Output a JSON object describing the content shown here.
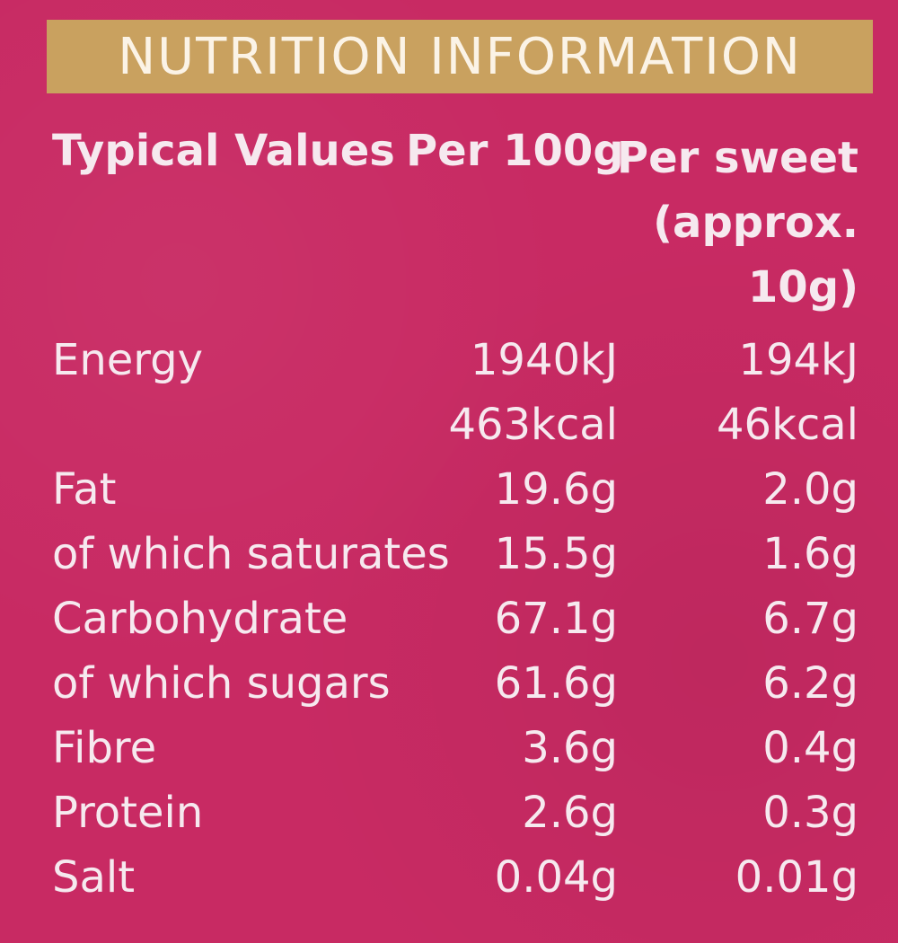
{
  "title": "NUTRITION INFORMATION",
  "header": {
    "typical_values": "Typical Values",
    "per_100g": "Per 100g",
    "per_sweet_line1": "Per sweet",
    "per_sweet_line2": "(approx.",
    "per_sweet_line3": "10g)"
  },
  "rows": [
    {
      "label": "Energy",
      "per100": [
        "1940kJ",
        "463kcal"
      ],
      "persweet": [
        "194kJ",
        "46kcal"
      ]
    },
    {
      "label": "Fat",
      "per100": "19.6g",
      "persweet": "2.0g"
    },
    {
      "label": "of which saturates",
      "per100": "15.5g",
      "persweet": "1.6g"
    },
    {
      "label": "Carbohydrate",
      "per100": "67.1g",
      "persweet": "6.7g"
    },
    {
      "label": "of which sugars",
      "per100": "61.6g",
      "persweet": "6.2g"
    },
    {
      "label": "Fibre",
      "per100": "3.6g",
      "persweet": "0.4g"
    },
    {
      "label": "Protein",
      "per100": "2.6g",
      "persweet": "0.3g"
    },
    {
      "label": "Salt",
      "per100": "0.04g",
      "persweet": "0.01g"
    }
  ],
  "colors": {
    "background": "#c82a63",
    "title_bar": "#c9a15f",
    "text": "#f6e9ef"
  }
}
